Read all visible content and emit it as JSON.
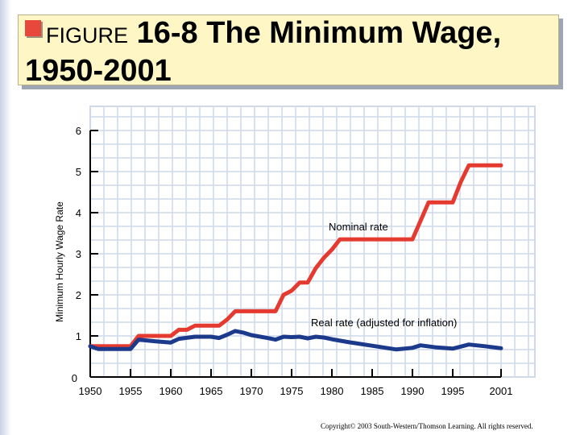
{
  "title": {
    "prefix": "FIGURE",
    "main": "16-8 The Minimum Wage,",
    "line2": "1950-2001"
  },
  "copyright": "Copyright© 2003 South-Western/Thomson Learning. All rights reserved.",
  "colors": {
    "nominal": "#e53a2f",
    "real": "#1c3a8c",
    "grid": "#cfd9ea",
    "title_bg": "#fff6c6"
  },
  "chart_data": {
    "type": "line",
    "title": "The Minimum Wage, 1950-2001",
    "xlabel": "",
    "ylabel": "Minimum Hourly Wage Rate",
    "xlim": [
      1950,
      2001
    ],
    "ylim": [
      0,
      6
    ],
    "x_ticks": [
      1950,
      1955,
      1960,
      1965,
      1970,
      1975,
      1980,
      1985,
      1990,
      1995,
      2001
    ],
    "y_ticks": [
      0,
      1,
      2,
      3,
      4,
      5,
      6
    ],
    "grid": true,
    "series": [
      {
        "name": "Nominal rate",
        "x": [
          1950,
          1955,
          1956,
          1960,
          1961,
          1962,
          1963,
          1966,
          1967,
          1968,
          1973,
          1974,
          1975,
          1976,
          1977,
          1978,
          1979,
          1980,
          1981,
          1990,
          1991,
          1992,
          1995,
          1996,
          1997,
          2001
        ],
        "values": [
          0.75,
          0.75,
          1.0,
          1.0,
          1.15,
          1.15,
          1.25,
          1.25,
          1.4,
          1.6,
          1.6,
          2.0,
          2.1,
          2.3,
          2.3,
          2.65,
          2.9,
          3.1,
          3.35,
          3.35,
          3.8,
          4.25,
          4.25,
          4.75,
          5.15,
          5.15
        ]
      },
      {
        "name": "Real rate (adjusted for inflation)",
        "x": [
          1950,
          1951,
          1955,
          1956,
          1958,
          1960,
          1961,
          1963,
          1965,
          1966,
          1967,
          1968,
          1969,
          1970,
          1972,
          1973,
          1974,
          1975,
          1976,
          1977,
          1978,
          1979,
          1980,
          1982,
          1985,
          1988,
          1990,
          1991,
          1993,
          1995,
          1997,
          1999,
          2001
        ],
        "values": [
          0.75,
          0.68,
          0.68,
          0.91,
          0.87,
          0.84,
          0.93,
          0.98,
          0.98,
          0.95,
          1.03,
          1.12,
          1.08,
          1.02,
          0.95,
          0.91,
          0.98,
          0.97,
          0.98,
          0.94,
          0.98,
          0.96,
          0.92,
          0.85,
          0.76,
          0.67,
          0.71,
          0.77,
          0.72,
          0.69,
          0.79,
          0.75,
          0.7
        ]
      }
    ],
    "annotations": [
      "Nominal rate",
      "Real rate (adjusted for inflation)"
    ]
  }
}
